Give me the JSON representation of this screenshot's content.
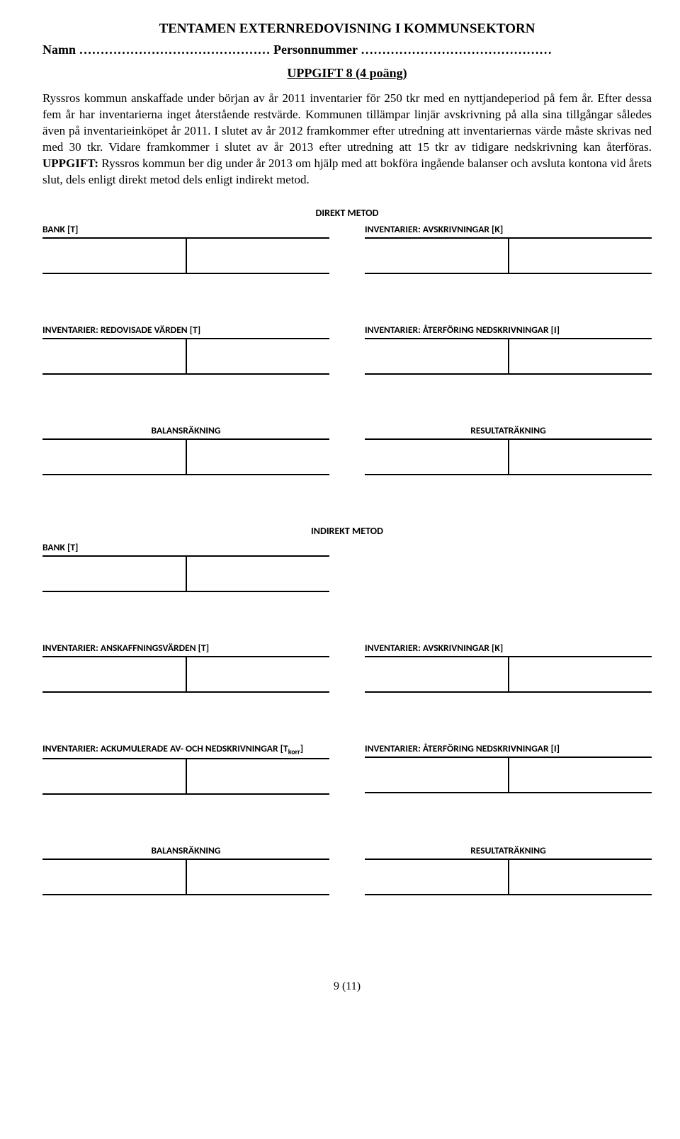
{
  "header": {
    "title": "TENTAMEN EXTERNREDOVISNING I KOMMUNSEKTORN",
    "name_label": "Namn",
    "name_dots": "………………………………………",
    "pnr_label": "Personnummer",
    "pnr_dots": "………………………………………"
  },
  "task": {
    "heading": "UPPGIFT 8 (4 poäng)",
    "paragraph_part1": "Ryssros kommun anskaffade under början av år 2011 inventarier för 250 tkr med en nyttjandeperiod på fem år. Efter dessa fem år har inventarierna inget återstående restvärde. Kommunen tillämpar linjär avskrivning på alla sina tillgångar således även på inventarieinköpet år 2011. I slutet av år 2012 framkommer efter utredning att inventariernas värde måste skrivas ned med 30 tkr. Vidare framkommer i slutet av år 2013 efter utredning att 15 tkr av tidigare nedskrivning kan återföras. ",
    "uppgift_label": "UPPGIFT:",
    "paragraph_part2": " Ryssros kommun ber dig under år 2013 om hjälp med att bokföra ingående balanser och avsluta kontona vid årets slut, dels enligt direkt metod dels enligt indirekt metod."
  },
  "methods": {
    "direkt": "DIREKT METOD",
    "indirekt": "INDIREKT METOD"
  },
  "accounts": {
    "bank": "BANK [T]",
    "avskrivningar": "INVENTARIER: AVSKRIVNINGAR [K]",
    "redovisade": "INVENTARIER: REDOVISADE VÄRDEN [T]",
    "aterforing": "INVENTARIER: ÅTERFÖRING NEDSKRIVNINGAR [I]",
    "balans": "BALANSRÄKNING",
    "resultat": "RESULTATRÄKNING",
    "anskaffning": "INVENTARIER: ANSKAFFNINGSVÄRDEN [T]",
    "ackumulerade_pre": "INVENTARIER: ACKUMULERADE AV- OCH NEDSKRIVNINGAR [T",
    "ackumulerade_sub": "korr",
    "ackumulerade_post": "]"
  },
  "footer": {
    "page": "9 (11)"
  }
}
